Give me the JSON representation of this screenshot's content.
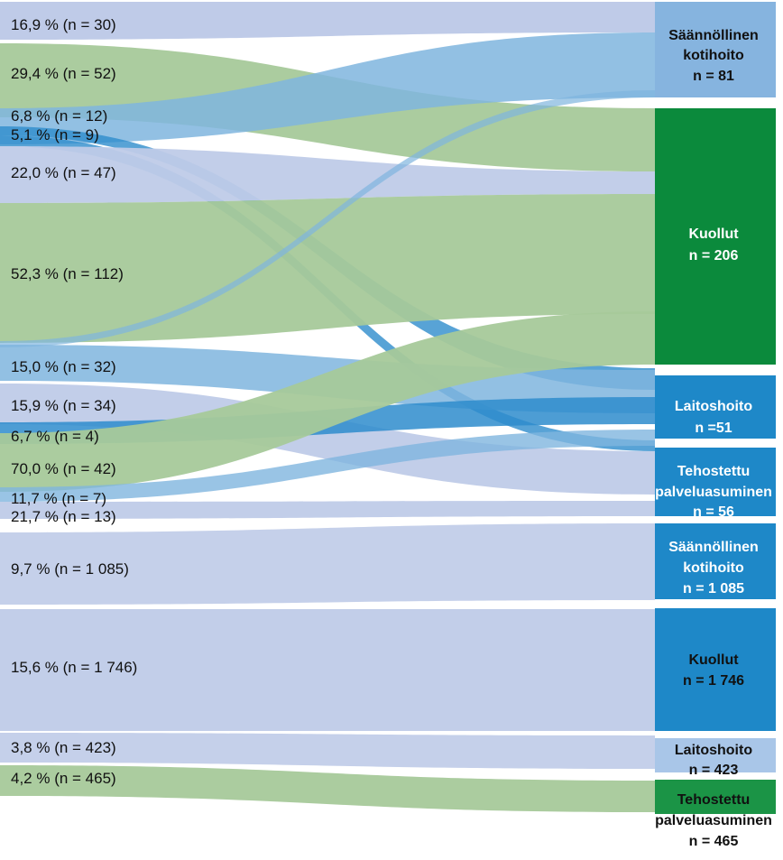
{
  "colors": {
    "light_blue": "#bfcbe8",
    "green": "#a6c99a",
    "mid_blue": "#7fb5de",
    "blue": "#2e8ccc",
    "node_light_blue": "#86b4df",
    "node_green": "#0b8a3c",
    "node_blue": "#1e88c8",
    "node_pale_blue": "#a9c6e8",
    "node_mid_green": "#1b9446",
    "text_dark": "#111111",
    "text_white": "#ffffff"
  },
  "flow_labels": [
    {
      "text": "16,9 % (n = 30)"
    },
    {
      "text": "29,4 % (n = 52)"
    },
    {
      "text": "6,8 % (n = 12)"
    },
    {
      "text": "5,1 % (n = 9)"
    },
    {
      "text": "22,0 % (n = 47)"
    },
    {
      "text": "52,3 % (n = 112)"
    },
    {
      "text": "15,0 % (n = 32)"
    },
    {
      "text": "15,9 % (n = 34)"
    },
    {
      "text": "6,7 % (n = 4)"
    },
    {
      "text": "70,0 % (n = 42)"
    },
    {
      "text": "11,7 % (n = 7)"
    },
    {
      "text": "21,7 % (n = 13)"
    },
    {
      "text": "9,7 % (n = 1 085)"
    },
    {
      "text": "15,6 % (n = 1 746)"
    },
    {
      "text": "3,8 % (n = 423)"
    },
    {
      "text": "4,2 % (n = 465)"
    }
  ],
  "nodes": [
    {
      "lines": [
        "Säännöllinen",
        "kotihoito",
        "n = 81"
      ]
    },
    {
      "lines": [
        "Kuollut",
        "n = 206"
      ]
    },
    {
      "lines": [
        "Laitoshoito",
        "n =51"
      ]
    },
    {
      "lines": [
        "Tehostettu",
        "palveluasuminen",
        "n = 56"
      ]
    },
    {
      "lines": [
        "Säännöllinen",
        "kotihoito",
        "n = 1 085"
      ]
    },
    {
      "lines": [
        "Kuollut",
        "n = 1 746"
      ]
    },
    {
      "lines": [
        "Laitoshoito",
        "n = 423"
      ]
    },
    {
      "lines": [
        "Tehostettu",
        "palveluasuminen",
        "n = 465"
      ]
    }
  ]
}
